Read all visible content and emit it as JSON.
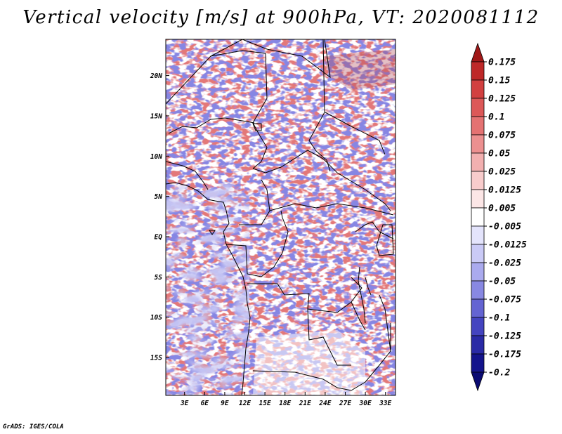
{
  "title": "Vertical velocity [m/s] at 900hPa, VT: 2020081112",
  "map": {
    "longitude_labels": [
      "3E",
      "6E",
      "9E",
      "12E",
      "15E",
      "18E",
      "21E",
      "24E",
      "27E",
      "30E",
      "33E"
    ],
    "longitude_values": [
      3,
      6,
      9,
      12,
      15,
      18,
      21,
      24,
      27,
      30,
      33
    ],
    "latitude_labels": [
      "20N",
      "15N",
      "10N",
      "5N",
      "EQ",
      "5S",
      "10S",
      "15S"
    ],
    "latitude_values": [
      20,
      15,
      10,
      5,
      0,
      -5,
      -10,
      -15
    ],
    "lon_range": [
      0.2,
      34.5
    ],
    "lat_range": [
      -19.7,
      24.5
    ]
  },
  "colorbar": {
    "labels": [
      "0.175",
      "0.15",
      "0.125",
      "0.1",
      "0.075",
      "0.05",
      "0.025",
      "0.0125",
      "0.005",
      "-0.005",
      "-0.0125",
      "-0.025",
      "-0.05",
      "-0.075",
      "-0.1",
      "-0.125",
      "-0.175",
      "-0.2"
    ],
    "colors": [
      "#a01818",
      "#be2828",
      "#d24040",
      "#dc5858",
      "#e47272",
      "#ec9090",
      "#f2b0b0",
      "#f8cccc",
      "#fce6e6",
      "#ffffff",
      "#e4e4fc",
      "#cacaf6",
      "#aaaaee",
      "#8888e2",
      "#6464d2",
      "#4444c0",
      "#2a2aa6",
      "#14148c",
      "#0a0a72"
    ]
  },
  "footer": "GrADS: IGES/COLA"
}
